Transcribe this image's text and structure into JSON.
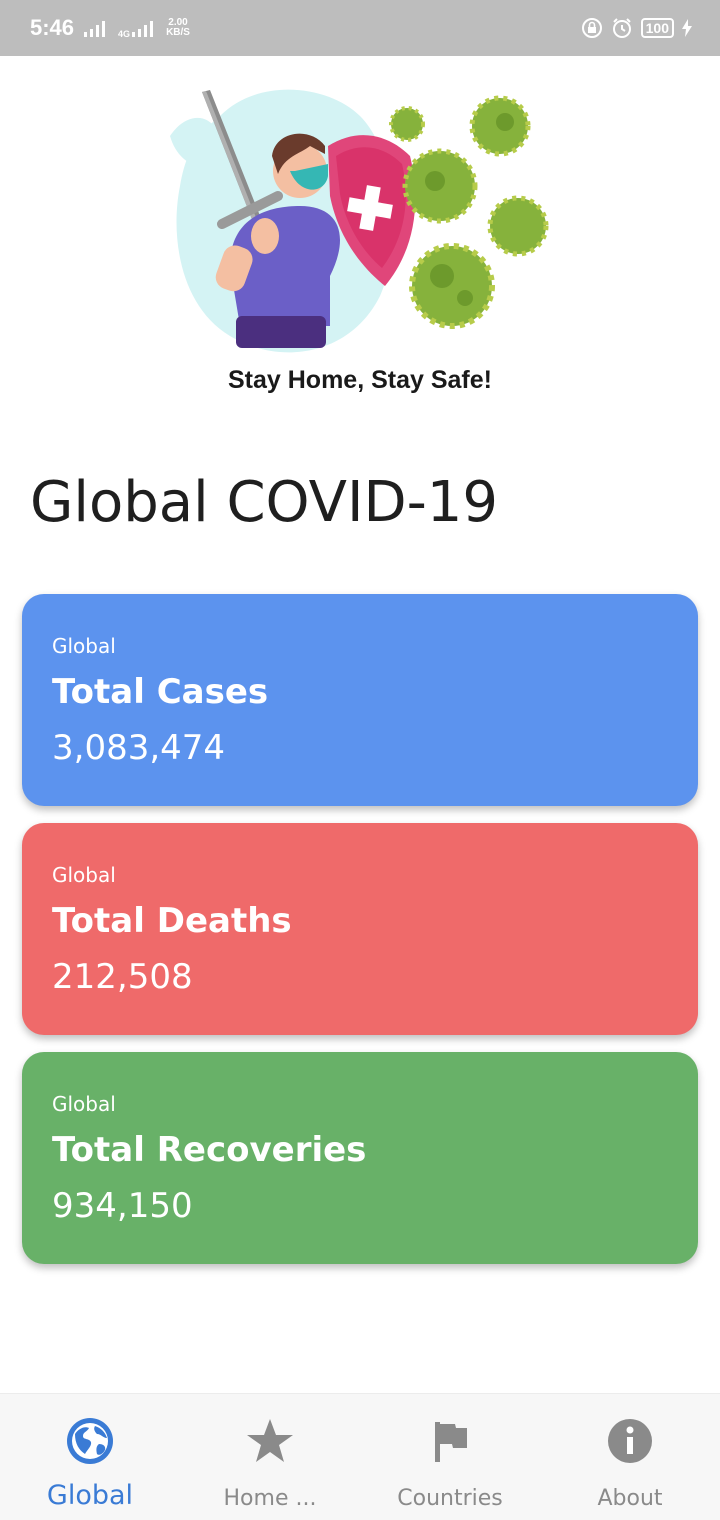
{
  "status_bar": {
    "time": "5:46",
    "net_speed_value": "2.00",
    "net_speed_unit": "KB/S",
    "network_label": "4G",
    "battery": "100"
  },
  "hero": {
    "tagline": "Stay Home, Stay Safe!"
  },
  "page": {
    "title": "Global COVID-19"
  },
  "cards": [
    {
      "scope": "Global",
      "title": "Total Cases",
      "value": "3,083,474",
      "color": "#5c93ee"
    },
    {
      "scope": "Global",
      "title": "Total Deaths",
      "value": "212,508",
      "color": "#ef6a6a"
    },
    {
      "scope": "Global",
      "title": "Total Recoveries",
      "value": "934,150",
      "color": "#68b168"
    }
  ],
  "bottom_nav": {
    "items": [
      {
        "label": "Global",
        "icon": "globe-icon",
        "active": true
      },
      {
        "label": "Home ...",
        "icon": "star-icon",
        "active": false
      },
      {
        "label": "Countries",
        "icon": "flag-icon",
        "active": false
      },
      {
        "label": "About",
        "icon": "info-icon",
        "active": false
      }
    ],
    "active_color": "#3a7bd5",
    "inactive_color": "#8a8a8a"
  }
}
